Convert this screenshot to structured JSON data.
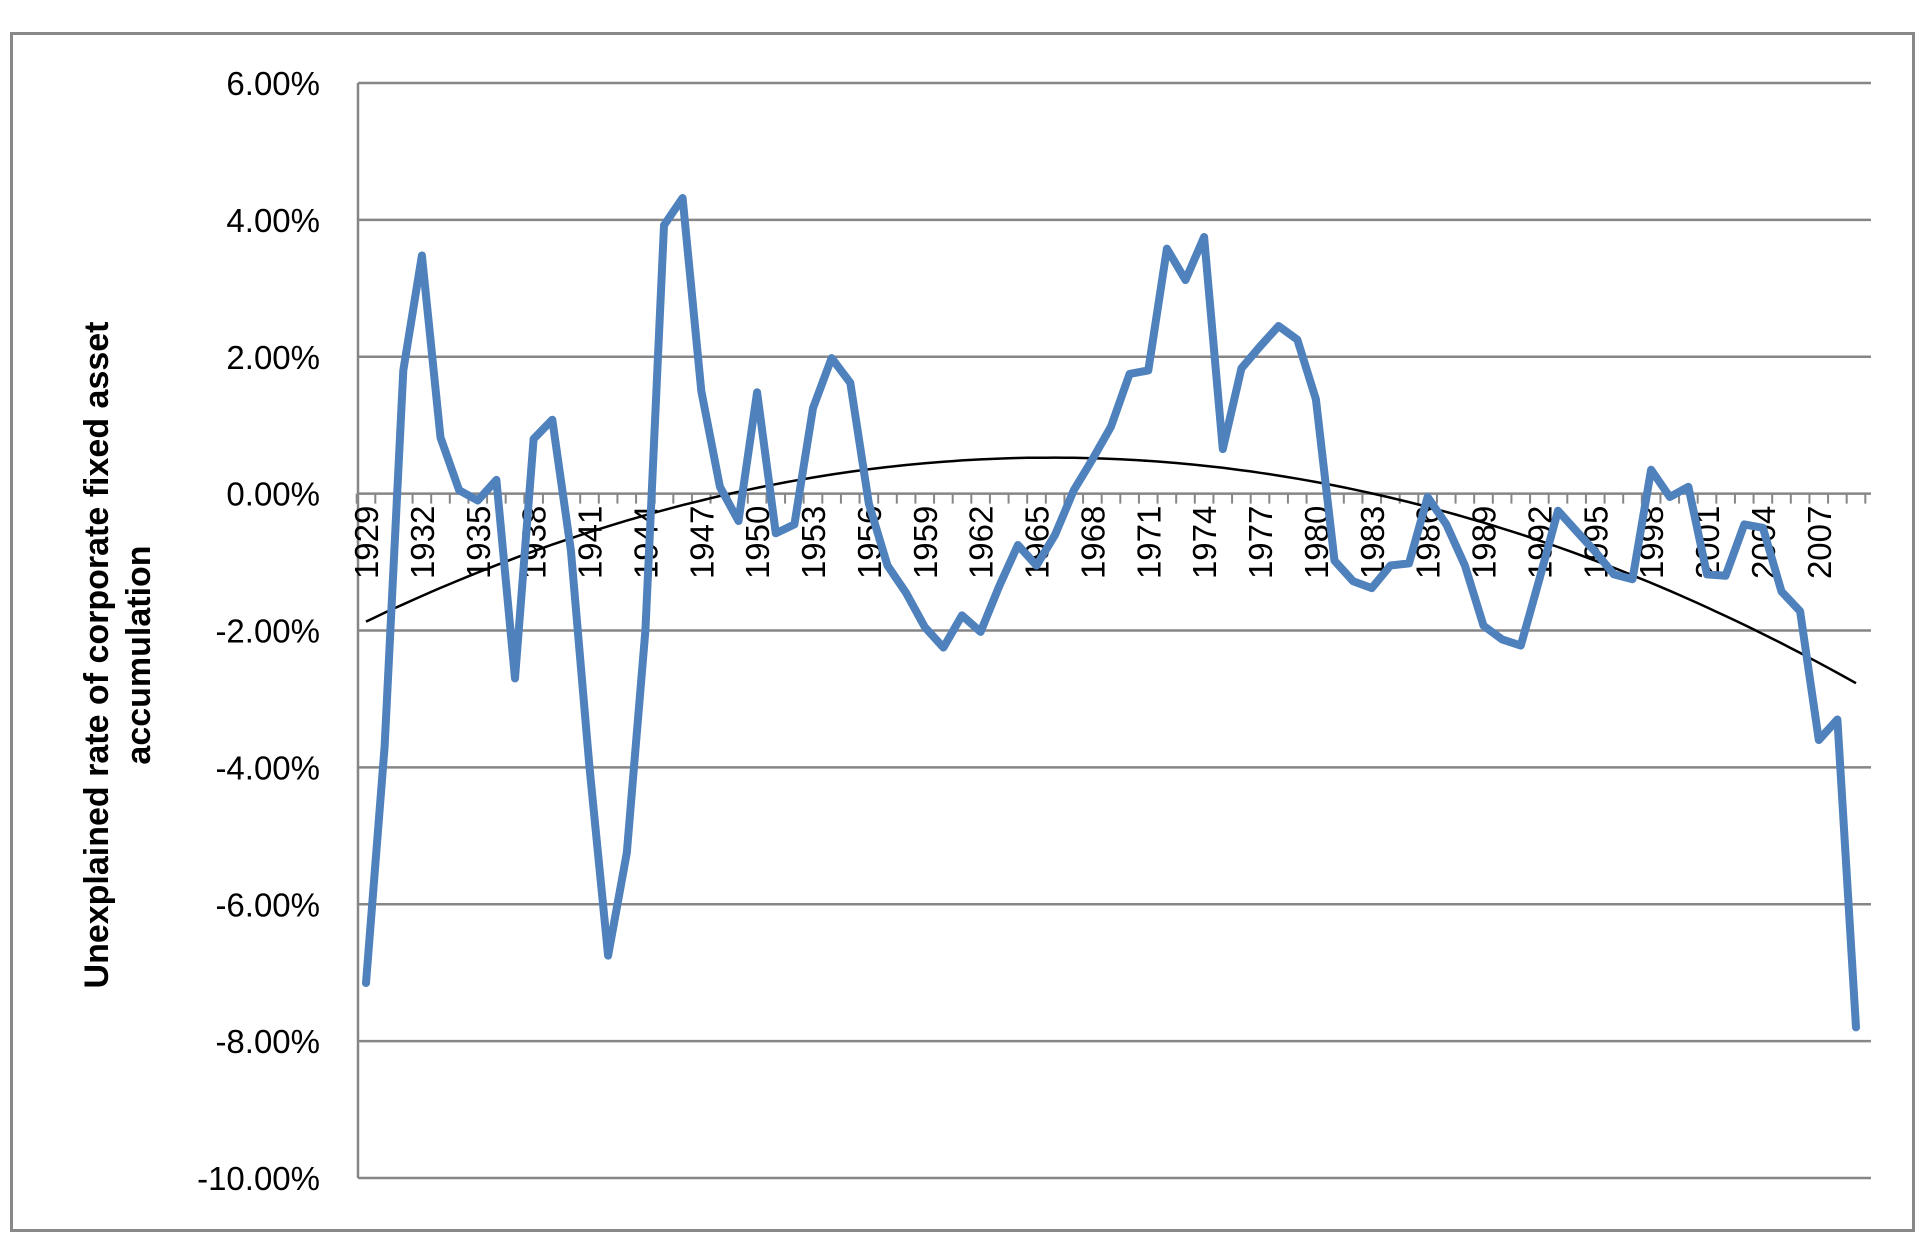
{
  "chart_data": {
    "type": "line",
    "title": "",
    "xlabel": "",
    "ylabel_lines": [
      "Unexplained rate of corporate fixed asset",
      "accumulation"
    ],
    "ylim": [
      -0.1,
      0.06
    ],
    "y_ticks": [
      0.06,
      0.04,
      0.02,
      0.0,
      -0.02,
      -0.04,
      -0.06,
      -0.08,
      -0.1
    ],
    "y_tick_labels": [
      "6.00%",
      "4.00%",
      "2.00%",
      "0.00%",
      "-2.00%",
      "-4.00%",
      "-6.00%",
      "-8.00%",
      "-10.00%"
    ],
    "x_tick_labels": [
      "1929",
      "1932",
      "1935",
      "1938",
      "1941",
      "1944",
      "1947",
      "1950",
      "1953",
      "1956",
      "1959",
      "1962",
      "1965",
      "1968",
      "1971",
      "1974",
      "1977",
      "1980",
      "1983",
      "1986",
      "1989",
      "1992",
      "1995",
      "1998",
      "2001",
      "2004",
      "2007"
    ],
    "x_start": 1929,
    "x_end": 2009,
    "grid": true,
    "legend": "none",
    "series": [
      {
        "color": "#4f81bd",
        "x": [
          1929,
          1930,
          1931,
          1932,
          1933,
          1934,
          1935,
          1936,
          1937,
          1938,
          1939,
          1940,
          1941,
          1942,
          1943,
          1944,
          1945,
          1946,
          1947,
          1948,
          1949,
          1950,
          1951,
          1952,
          1953,
          1954,
          1955,
          1956,
          1957,
          1958,
          1959,
          1960,
          1961,
          1962,
          1963,
          1964,
          1965,
          1966,
          1967,
          1968,
          1969,
          1970,
          1971,
          1972,
          1973,
          1974,
          1975,
          1976,
          1977,
          1978,
          1979,
          1980,
          1981,
          1982,
          1983,
          1984,
          1985,
          1986,
          1987,
          1988,
          1989,
          1990,
          1991,
          1992,
          1993,
          1994,
          1995,
          1996,
          1997,
          1998,
          1999,
          2000,
          2001,
          2002,
          2003,
          2004,
          2005,
          2006,
          2007,
          2008,
          2009
        ],
        "values": [
          -0.0715,
          -0.037,
          0.018,
          0.0348,
          0.0082,
          0.0005,
          -0.001,
          0.002,
          -0.027,
          0.008,
          0.0108,
          -0.0083,
          -0.04,
          -0.0675,
          -0.0525,
          -0.02,
          0.0392,
          0.0432,
          0.015,
          0.001,
          -0.004,
          0.0148,
          -0.0058,
          -0.0045,
          0.0125,
          0.0198,
          0.0162,
          -0.0015,
          -0.0105,
          -0.0145,
          -0.0195,
          -0.0225,
          -0.0178,
          -0.0202,
          -0.0135,
          -0.0075,
          -0.0105,
          -0.006,
          0.0005,
          0.005,
          0.0098,
          0.0175,
          0.018,
          0.0358,
          0.0312,
          0.0375,
          0.0065,
          0.0183,
          0.0215,
          0.0245,
          0.0225,
          0.0138,
          -0.0098,
          -0.0128,
          -0.0138,
          -0.0105,
          -0.0102,
          -0.0005,
          -0.0045,
          -0.0105,
          -0.0193,
          -0.0213,
          -0.0222,
          -0.0125,
          -0.0025,
          -0.0055,
          -0.0085,
          -0.0118,
          -0.0125,
          0.0035,
          -0.0005,
          0.001,
          -0.0118,
          -0.012,
          -0.0045,
          -0.005,
          -0.0143,
          -0.0172,
          -0.036,
          -0.033,
          -0.078
        ]
      },
      {
        "type": "trendline",
        "color": "#000000",
        "x": [
          1929,
          1964,
          2009
        ],
        "values": [
          -0.0187,
          0.0052,
          -0.0277
        ]
      }
    ]
  }
}
